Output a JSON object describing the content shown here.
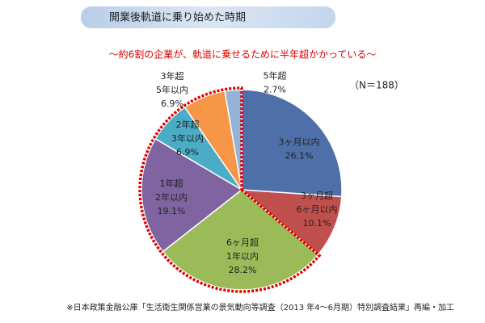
{
  "chart_data": {
    "type": "pie",
    "title": "開業後軌道に乗り始めた時期",
    "subtitle": "～約6割の企業が、軌道に乗せるために半年超かかっている～",
    "annotation": "（N＝188）",
    "footnote": "※日本政策金融公庫「生活衛生関係営業の景気動向等調査（2013 年4～6月期）特別調査結果」再編・加工",
    "label_lines": [
      [
        "3ヶ月以内"
      ],
      [
        "3ヶ月超",
        "6ヶ月以内"
      ],
      [
        "6ヶ月超",
        "1年以内"
      ],
      [
        "1年超",
        "2年以内"
      ],
      [
        "2年超",
        "3年以内"
      ],
      [
        "3年超",
        "5年以内"
      ],
      [
        "5年超"
      ]
    ],
    "values": [
      26.1,
      10.1,
      28.2,
      19.1,
      6.9,
      6.9,
      2.7
    ],
    "value_labels": [
      "26.1%",
      "10.1%",
      "28.2%",
      "19.1%",
      "6.9%",
      "6.9%",
      "2.7%"
    ],
    "colors": [
      "#4f6fa8",
      "#c0504d",
      "#9bbb59",
      "#8064a2",
      "#4bacc6",
      "#f79646",
      "#95b3d7"
    ],
    "highlight": [
      false,
      false,
      true,
      true,
      true,
      true,
      true
    ],
    "highlight_color": "#e00000"
  }
}
